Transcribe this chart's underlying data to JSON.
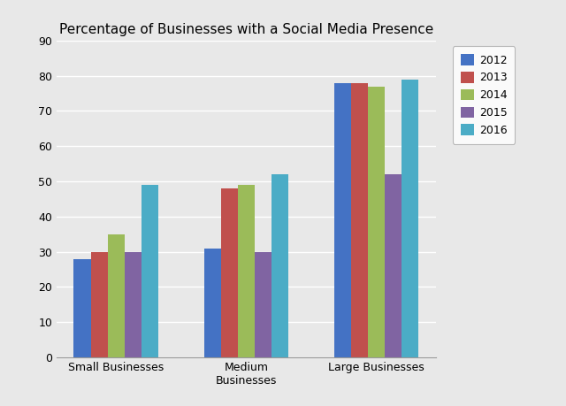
{
  "title": "Percentage of Businesses with a Social Media Presence",
  "categories": [
    "Small Businesses",
    "Medium\nBusinesses",
    "Large Businesses"
  ],
  "years": [
    "2012",
    "2013",
    "2014",
    "2015",
    "2016"
  ],
  "values": {
    "2012": [
      28,
      31,
      78
    ],
    "2013": [
      30,
      48,
      78
    ],
    "2014": [
      35,
      49,
      77
    ],
    "2015": [
      30,
      30,
      52
    ],
    "2016": [
      49,
      52,
      79
    ]
  },
  "colors": {
    "2012": "#4472C4",
    "2013": "#C0504D",
    "2014": "#9BBB59",
    "2015": "#8064A2",
    "2016": "#4BACC6"
  },
  "ylim": [
    0,
    90
  ],
  "yticks": [
    0,
    10,
    20,
    30,
    40,
    50,
    60,
    70,
    80,
    90
  ],
  "plot_bg_color": "#E8E8E8",
  "fig_bg_color": "#E8E8E8",
  "bar_width": 0.13,
  "title_fontsize": 11,
  "tick_fontsize": 9,
  "legend_fontsize": 9
}
